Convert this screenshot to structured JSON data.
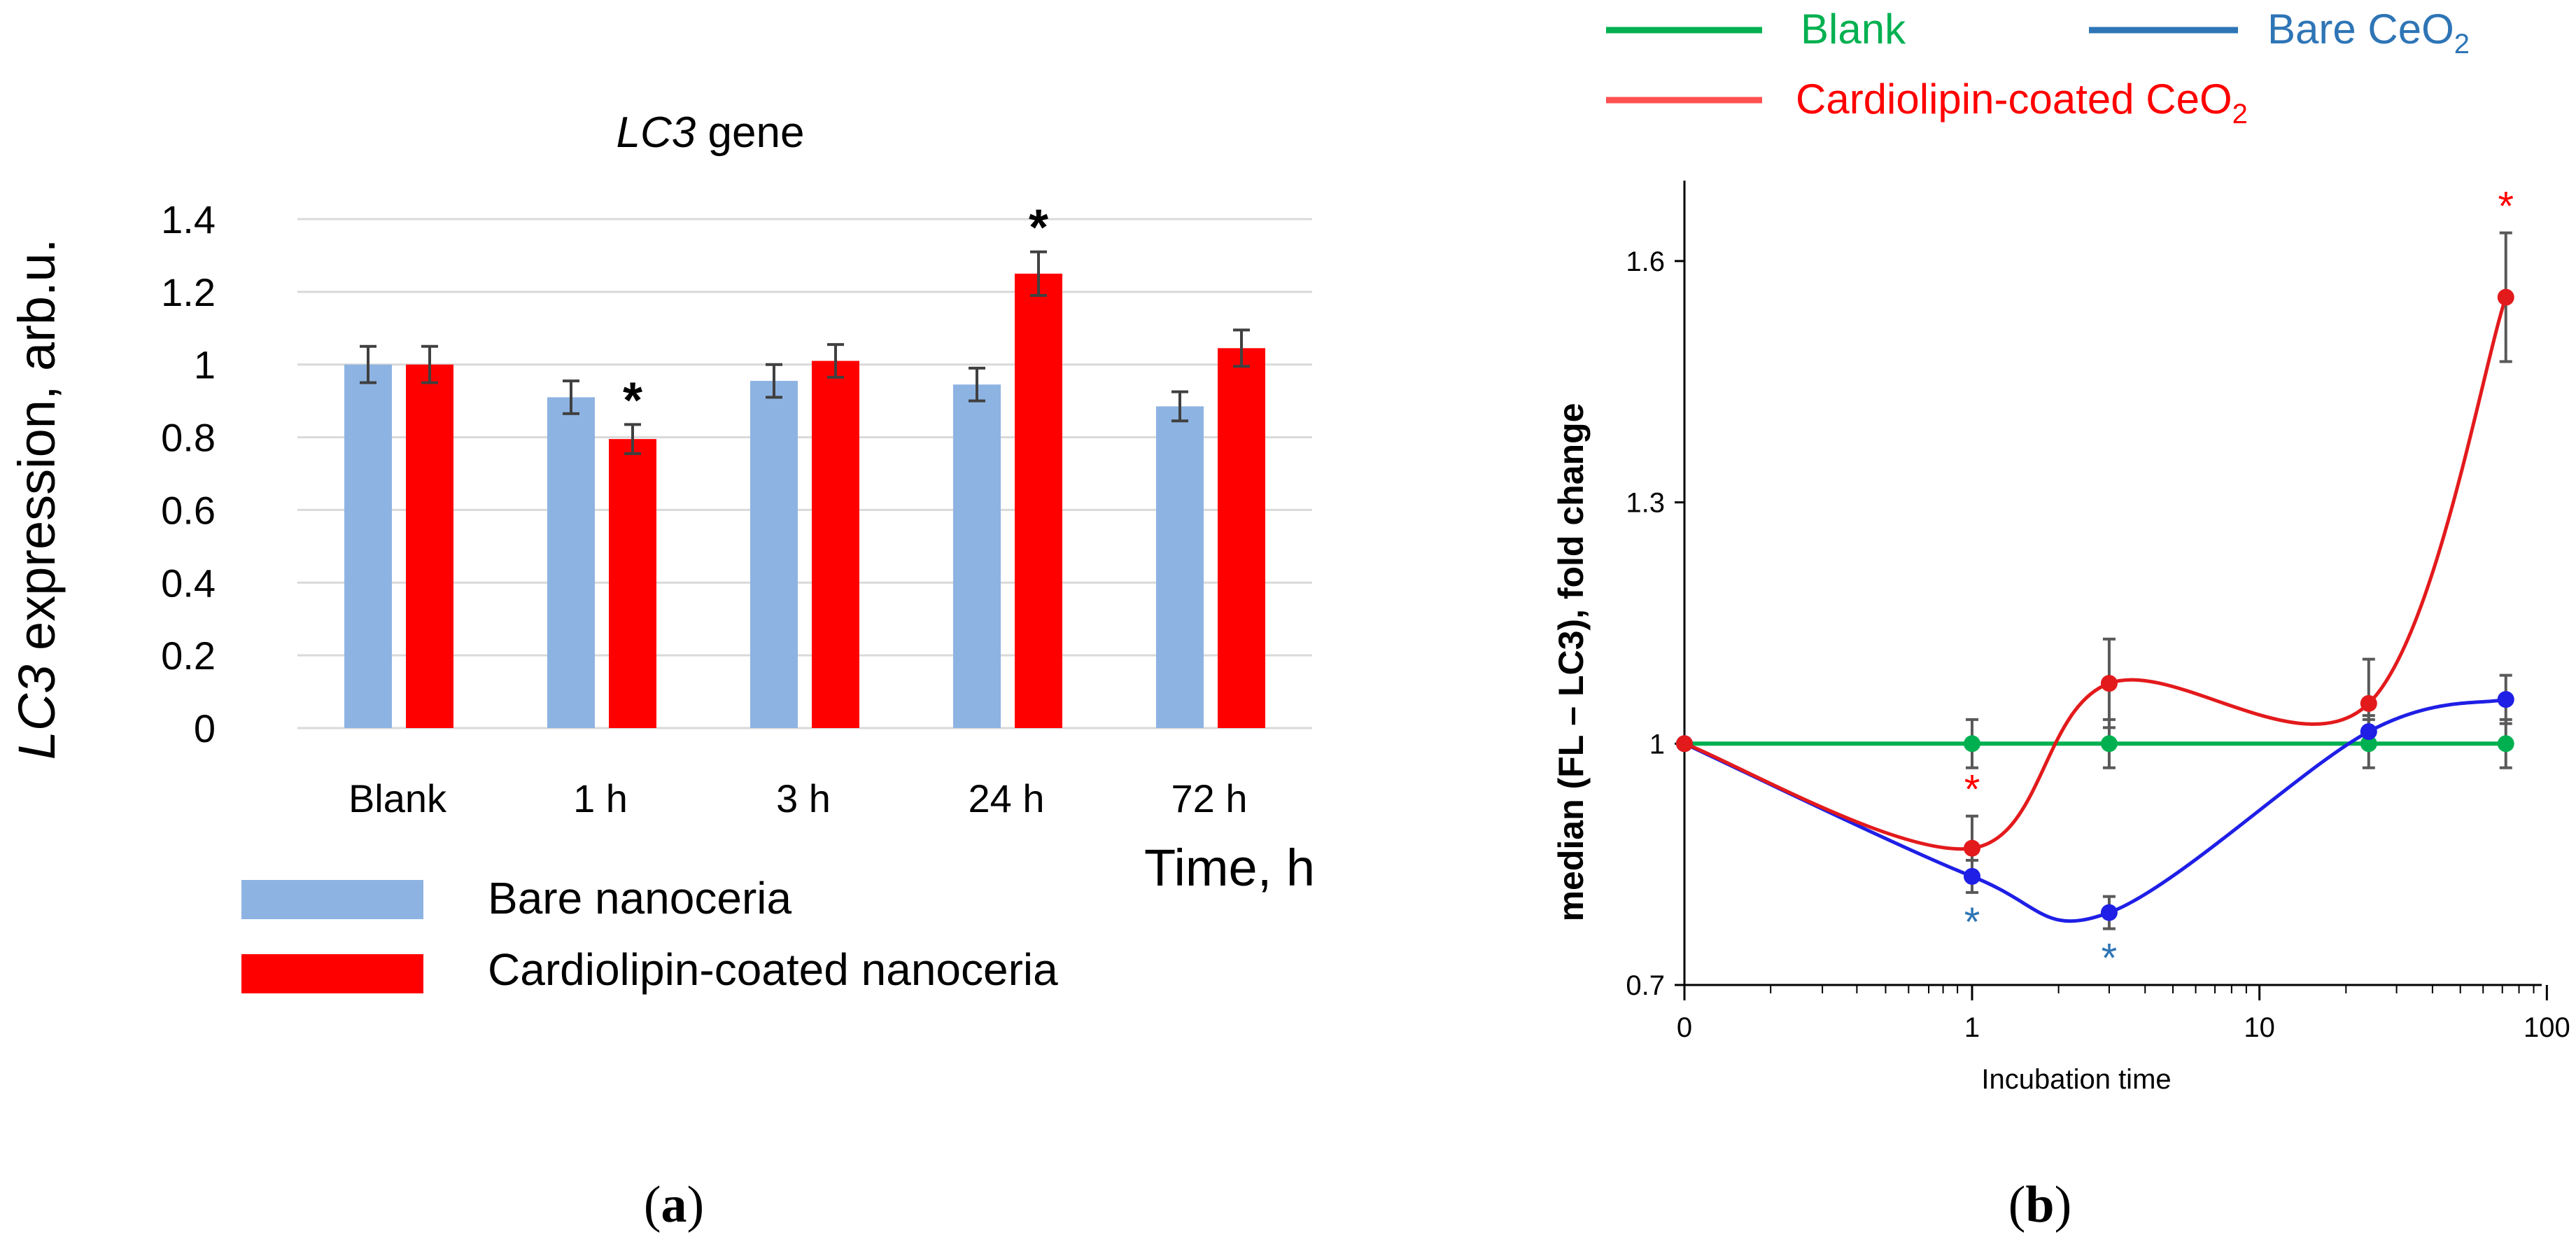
{
  "chart_data": [
    {
      "type": "bar",
      "title": "LC3 gene",
      "title_italic": "LC3",
      "title_rest": " gene",
      "categories": [
        "Blank",
        "1 h",
        "3 h",
        "24 h",
        "72 h"
      ],
      "series": [
        {
          "name": "Bare nanoceria",
          "color": "#8db3e2",
          "values": [
            1.0,
            0.91,
            0.955,
            0.945,
            0.885
          ],
          "errors": [
            0.05,
            0.045,
            0.045,
            0.045,
            0.04
          ]
        },
        {
          "name": "Cardiolipin-coated nanoceria",
          "color": "#ff0000",
          "values": [
            1.0,
            0.795,
            1.01,
            1.25,
            1.045
          ],
          "errors": [
            0.05,
            0.04,
            0.045,
            0.06,
            0.05
          ],
          "significant": [
            false,
            true,
            false,
            true,
            false
          ]
        }
      ],
      "ylabel_italic": "LC3",
      "ylabel_rest": " expression, arb.u.",
      "xlabel": "Time, h",
      "ylim": [
        0,
        1.4
      ],
      "yticks": [
        0,
        0.2,
        0.4,
        0.6,
        0.8,
        1,
        1.2,
        1.4
      ],
      "ytick_labels": [
        "0",
        "0.2",
        "0.4",
        "0.6",
        "0.8",
        "1",
        "1.2",
        "1.4"
      ],
      "grid": true,
      "significance_marker": "*",
      "panel_label": "(a)",
      "panel_label_letter": "a"
    },
    {
      "type": "line",
      "xscale": "log",
      "ylabel": "median (FL – LC3), fold change",
      "xlabel": "Incubation time",
      "ylim": [
        0.7,
        1.7
      ],
      "yticks": [
        0.7,
        1,
        1.3,
        1.6
      ],
      "ytick_labels": [
        "0.7",
        "1",
        "1.3",
        "1.6"
      ],
      "xticks": [
        "0",
        "1",
        "10",
        "100"
      ],
      "x": [
        "0",
        "1",
        "3",
        "24",
        "72"
      ],
      "series": [
        {
          "name": "Blank",
          "color": "#00b050",
          "legend_color": "#00b050",
          "values": [
            1.0,
            1.0,
            1.0,
            1.0,
            1.0
          ],
          "errors": [
            0.0,
            0.03,
            0.03,
            0.03,
            0.03
          ]
        },
        {
          "name": "Bare CeO",
          "name_sub": "2",
          "color": "#1f1fe6",
          "legend_color": "#2e75b6",
          "marker_color": "#2e75b6",
          "values": [
            1.0,
            0.835,
            0.79,
            1.015,
            1.055
          ],
          "errors": [
            0.0,
            0.02,
            0.02,
            0.02,
            0.03
          ],
          "significant": [
            false,
            true,
            true,
            false,
            false
          ]
        },
        {
          "name": "Cardiolipin-coated CeO",
          "name_sub": "2",
          "color": "#e31a1c",
          "legend_color": "#ff5050",
          "marker_color": "#ff0000",
          "values": [
            1.0,
            0.87,
            1.075,
            1.05,
            1.555
          ],
          "errors": [
            0.0,
            0.04,
            0.055,
            0.055,
            0.08
          ],
          "significant": [
            false,
            true,
            false,
            false,
            true
          ]
        }
      ],
      "significance_marker": "*",
      "panel_label": "(b)",
      "panel_label_letter": "b"
    }
  ]
}
